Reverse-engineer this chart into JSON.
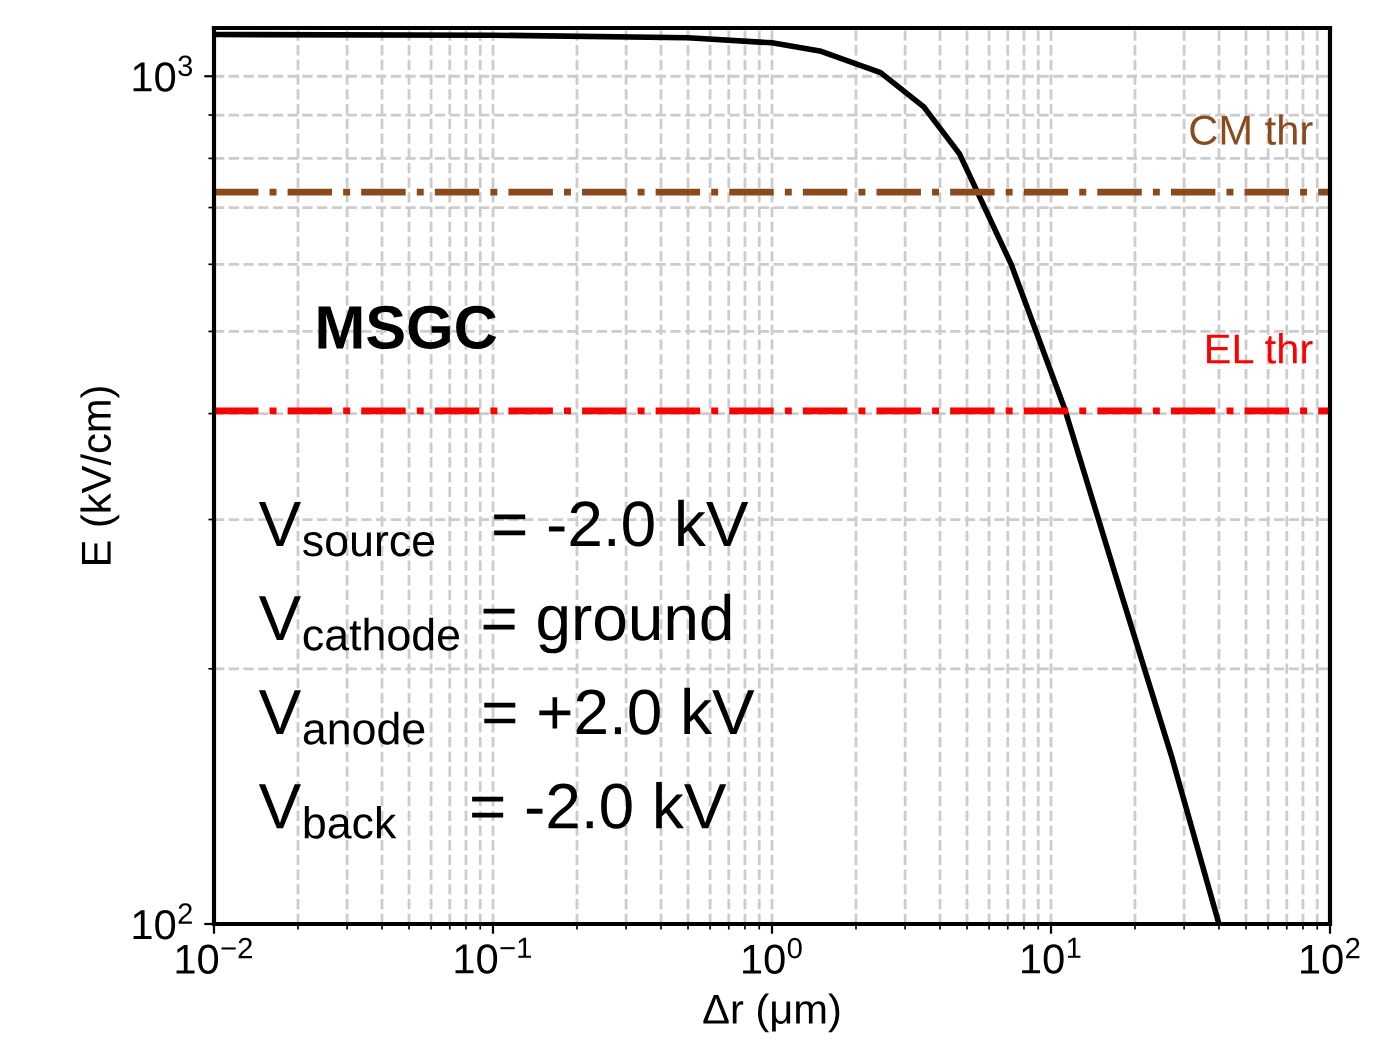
{
  "chart_data": {
    "type": "line",
    "xlabel": "Δr (μm)",
    "ylabel": "E (kV/cm)",
    "x": [
      0.01,
      0.1,
      0.5,
      1,
      1.5,
      2.45,
      3.5,
      4.7,
      7.2,
      11.2,
      17.8,
      27,
      40
    ],
    "series": [
      {
        "color": "#000000",
        "values": [
          1120,
          1118,
          1110,
          1095,
          1070,
          1010,
          920,
          810,
          600,
          405,
          246,
          158,
          100
        ]
      }
    ],
    "log": "xy",
    "xlim": [
      0.01,
      100
    ],
    "ylim": [
      100,
      1140
    ],
    "xticks": [
      {
        "value": 0.01,
        "label": "10$^{−2}$"
      },
      {
        "value": 0.1,
        "label": "10$^{−1}$"
      },
      {
        "value": 1,
        "label": "10$^{0}$"
      },
      {
        "value": 10,
        "label": "10$^{1}$"
      },
      {
        "value": 100,
        "label": "10$^{2}$"
      }
    ],
    "yticks": [
      {
        "value": 100,
        "label": "10$^{2}$"
      },
      {
        "value": 1000,
        "label": "10$^{3}$"
      }
    ],
    "ref_lines": [
      {
        "axis": "y",
        "value": 730,
        "label": "CM thr",
        "color": "#8b4a1c",
        "line_style": "dashdot"
      },
      {
        "axis": "y",
        "value": 403,
        "label": "EL thr",
        "color": "#ff0000",
        "line_style": "dashdot"
      }
    ],
    "annotations": [
      "MSGC",
      "V$_{source}$   = -2.0 kV",
      "V$_{cathode}$ = ground",
      "V$_{anode}$   = +2.0 kV",
      "V$_{back}$    = -2.0 kV"
    ],
    "grid": true,
    "legend": false,
    "marker": "none",
    "line_style": "solid"
  }
}
